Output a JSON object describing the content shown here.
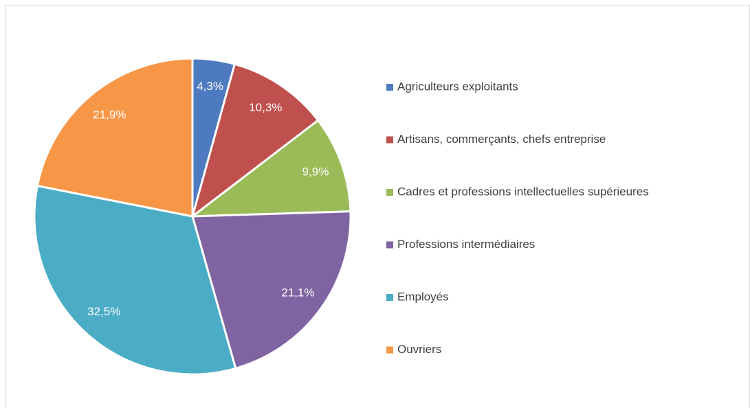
{
  "chart_data": {
    "type": "pie",
    "categories": [
      "Agriculteurs exploitants",
      "Artisans, commerçants, chefs entreprise",
      "Cadres et professions intellectuelles supérieures",
      "Professions intermédiaires",
      "Employés",
      "Ouvriers"
    ],
    "values": [
      4.3,
      10.3,
      9.9,
      21.1,
      32.5,
      21.9
    ],
    "value_labels": [
      "4,3%",
      "10,3%",
      "9,9%",
      "21,1%",
      "32,5%",
      "21,9%"
    ],
    "colors": [
      "#4e7ac0",
      "#c0504d",
      "#9bbb59",
      "#8064a2",
      "#4bacc6",
      "#f79646"
    ],
    "legend": "right"
  }
}
